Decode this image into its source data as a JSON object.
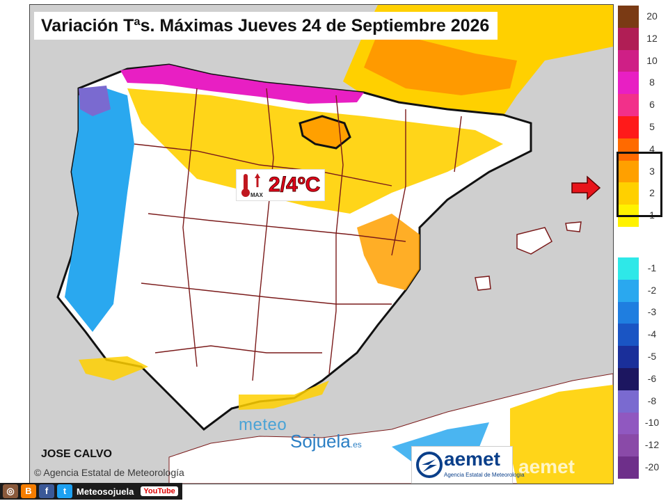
{
  "title": "Variación Tªs. Máximas Jueves 24 de Septiembre 2026",
  "forecast": {
    "icon": "thermometer-up-icon",
    "icon_label": "MAX",
    "value": "2/4ºC"
  },
  "author": "JOSE CALVO",
  "copyright": "© Agencia Estatal de Meteorología",
  "watermark": {
    "meteo": "meteo",
    "sojuela": "Sojuela",
    "tld": ".es"
  },
  "aemet_logo": {
    "name": "aemet",
    "subtitle": "Agencia Estatal de Meteorología"
  },
  "aemet_watermark": "aemet",
  "legend": {
    "highlighted_range": [
      "2",
      "4"
    ],
    "items": [
      {
        "label": "20",
        "color": "#7a3a14"
      },
      {
        "label": "12",
        "color": "#b01e55"
      },
      {
        "label": "10",
        "color": "#cf1f86"
      },
      {
        "label": "8",
        "color": "#e81fc3"
      },
      {
        "label": "6",
        "color": "#f2308a"
      },
      {
        "label": "5",
        "color": "#ff1a1a"
      },
      {
        "label": "4",
        "color": "#ff6a00"
      },
      {
        "label": "3",
        "color": "#ffa000"
      },
      {
        "label": "2",
        "color": "#ffd000"
      },
      {
        "label": "1",
        "color": "#fff200"
      },
      {
        "label": "",
        "color": "#ffffff"
      },
      {
        "label": "-1",
        "color": "#2ee8e8"
      },
      {
        "label": "-2",
        "color": "#2aa8ef"
      },
      {
        "label": "-3",
        "color": "#1f7ee0"
      },
      {
        "label": "-4",
        "color": "#1a55c4"
      },
      {
        "label": "-5",
        "color": "#1a2f9a"
      },
      {
        "label": "-6",
        "color": "#1c1660"
      },
      {
        "label": "-8",
        "color": "#7a6ad0"
      },
      {
        "label": "-10",
        "color": "#9058c0"
      },
      {
        "label": "-12",
        "color": "#8a4aa8"
      },
      {
        "label": "-20",
        "color": "#6e2f8a"
      }
    ]
  },
  "social": {
    "icons": [
      "instagram-icon",
      "blogger-icon",
      "facebook-icon",
      "twitter-icon"
    ],
    "handle": "Meteosojuela",
    "youtube": "YouTube"
  }
}
